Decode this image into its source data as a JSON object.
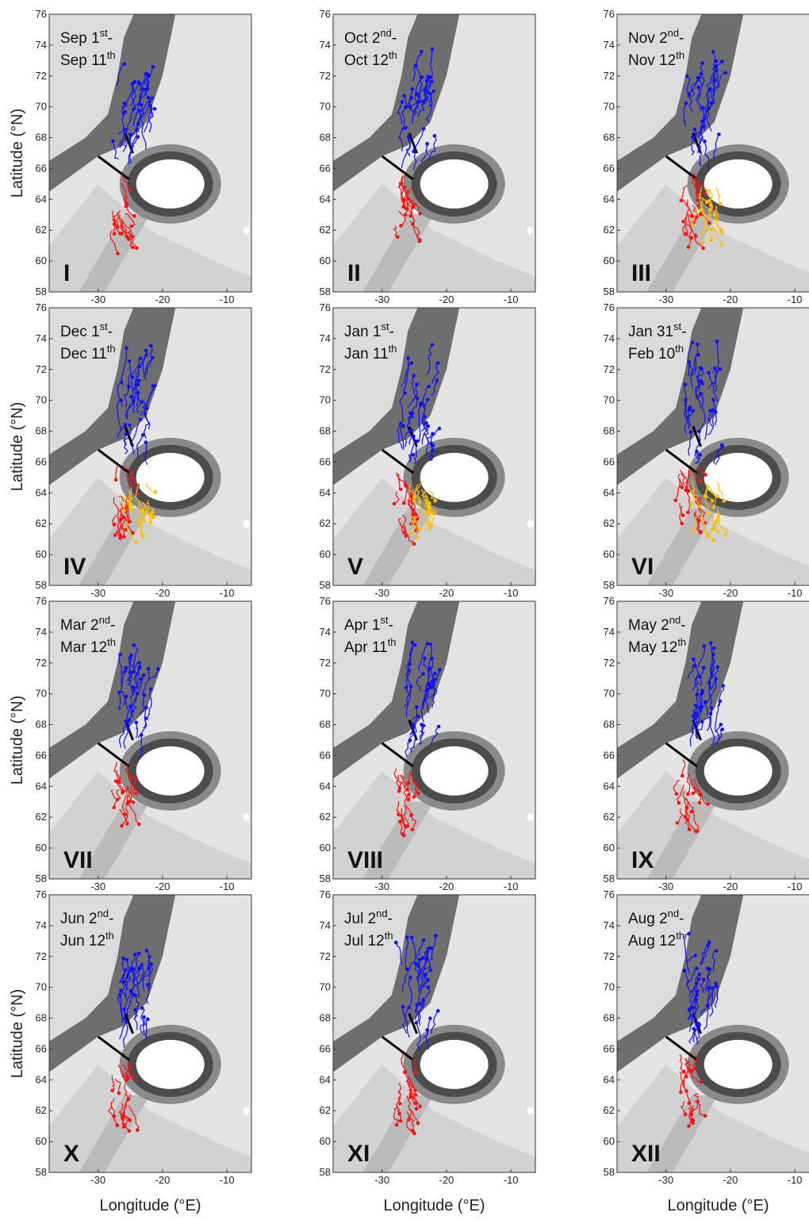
{
  "axes": {
    "y_label": "Latitude (°N)",
    "x_label": "Longitude (°E)",
    "xlim": [
      -37.6,
      -6.2
    ],
    "ylim": [
      58,
      76
    ],
    "xticks": [
      -30,
      -20,
      -10
    ],
    "yticks": [
      58,
      60,
      62,
      64,
      66,
      68,
      70,
      72,
      74,
      76
    ]
  },
  "separator": "-",
  "panels": [
    {
      "start": "Sep 1",
      "start_sup": "st",
      "end": "Sep 11",
      "end_sup": "th",
      "numeral": "I",
      "tracks": [
        "#1010ff",
        "#ff1010"
      ]
    },
    {
      "start": "Oct 2",
      "start_sup": "nd",
      "end": "Oct 12",
      "end_sup": "th",
      "numeral": "II",
      "tracks": [
        "#1010ff",
        "#ff1010"
      ]
    },
    {
      "start": "Nov 2",
      "start_sup": "nd",
      "end": "Nov 12",
      "end_sup": "th",
      "numeral": "III",
      "tracks": [
        "#1010ff",
        "#ff1010",
        "#ffc000"
      ]
    },
    {
      "start": "Dec 1",
      "start_sup": "st",
      "end": "Dec 11",
      "end_sup": "th",
      "numeral": "IV",
      "tracks": [
        "#1010ff",
        "#ff1010",
        "#ffc000"
      ]
    },
    {
      "start": "Jan 1",
      "start_sup": "st",
      "end": "Jan 11",
      "end_sup": "th",
      "numeral": "V",
      "tracks": [
        "#1010ff",
        "#ff1010",
        "#ffc000"
      ]
    },
    {
      "start": "Jan 31",
      "start_sup": "st",
      "end": "Feb 10",
      "end_sup": "th",
      "numeral": "VI",
      "tracks": [
        "#1010ff",
        "#ff1010",
        "#ffc000"
      ]
    },
    {
      "start": "Mar 2",
      "start_sup": "nd",
      "end": "Mar 12",
      "end_sup": "th",
      "numeral": "VII",
      "tracks": [
        "#1010ff",
        "#ff1010"
      ]
    },
    {
      "start": "Apr 1",
      "start_sup": "st",
      "end": "Apr 11",
      "end_sup": "th",
      "numeral": "VIII",
      "tracks": [
        "#1010ff",
        "#ff1010"
      ]
    },
    {
      "start": "May 2",
      "start_sup": "nd",
      "end": "May 12",
      "end_sup": "th",
      "numeral": "IX",
      "tracks": [
        "#1010ff",
        "#ff1010"
      ]
    },
    {
      "start": "Jun 2",
      "start_sup": "nd",
      "end": "Jun 12",
      "end_sup": "th",
      "numeral": "X",
      "tracks": [
        "#1010ff",
        "#ff1010"
      ]
    },
    {
      "start": "Jul 2",
      "start_sup": "nd",
      "end": "Jul 12",
      "end_sup": "th",
      "numeral": "XI",
      "tracks": [
        "#1010ff",
        "#ff1010"
      ]
    },
    {
      "start": "Aug 2",
      "start_sup": "nd",
      "end": "Aug 12",
      "end_sup": "th",
      "numeral": "XII",
      "tracks": [
        "#1010ff",
        "#ff1010"
      ]
    }
  ]
}
